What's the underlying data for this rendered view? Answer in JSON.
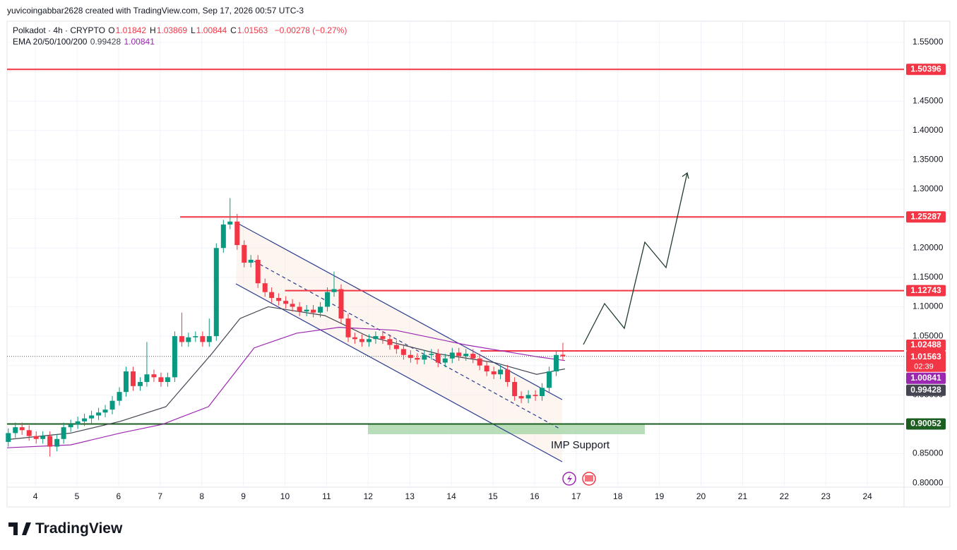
{
  "header": {
    "credit": "yuvicoingabbar2628 created with TradingView.com, Sep 17, 2026 00:57 UTC-3"
  },
  "footer": {
    "logo": "TradingView"
  },
  "chart_data": {
    "type": "candlestick",
    "symbol": "Polkadot · 4h · CRYPTO",
    "ohlc_letters": [
      "O",
      "H",
      "L",
      "C"
    ],
    "change": "−0.00278 (−0.27%)",
    "indicator": "EMA 20/50/100/200",
    "annotation": "IMP Support",
    "countdown": "02:39",
    "up_color": "#089981",
    "down_color": "#f23645",
    "grid": true,
    "xlim": [
      3.32,
      24.88
    ],
    "xticks": [
      4,
      5,
      6,
      7,
      8,
      9,
      10,
      11,
      12,
      13,
      14,
      15,
      16,
      17,
      18,
      19,
      20,
      21,
      22,
      23,
      24
    ],
    "ylim": [
      0.793,
      1.586
    ],
    "yticks": [
      {
        "value": 0.8,
        "label": "0.80000"
      },
      {
        "value": 0.85,
        "label": "0.85000"
      },
      {
        "value": 0.9,
        "label": "0.90000"
      },
      {
        "value": 0.95,
        "label": "0.95000"
      },
      {
        "value": 1.0,
        "label": "1.00000"
      },
      {
        "value": 1.05,
        "label": "1.05000"
      },
      {
        "value": 1.1,
        "label": "1.10000"
      },
      {
        "value": 1.15,
        "label": "1.15000"
      },
      {
        "value": 1.2,
        "label": "1.20000"
      },
      {
        "value": 1.25,
        "label": "1.25000"
      },
      {
        "value": 1.3,
        "label": "1.30000"
      },
      {
        "value": 1.35,
        "label": "1.35000"
      },
      {
        "value": 1.4,
        "label": "1.40000"
      },
      {
        "value": 1.45,
        "label": "1.45000"
      },
      {
        "value": 1.5,
        "label": "1.50000"
      },
      {
        "value": 1.55,
        "label": "1.55000"
      }
    ],
    "x": [
      3.35,
      3.52,
      3.68,
      3.85,
      4.02,
      4.18,
      4.35,
      4.52,
      4.68,
      4.85,
      5.02,
      5.18,
      5.35,
      5.52,
      5.68,
      5.85,
      6.02,
      6.18,
      6.35,
      6.52,
      6.68,
      6.85,
      7.02,
      7.18,
      7.35,
      7.52,
      7.68,
      7.85,
      8.02,
      8.18,
      8.35,
      8.52,
      8.68,
      8.85,
      9.02,
      9.18,
      9.35,
      9.52,
      9.68,
      9.85,
      10.02,
      10.18,
      10.35,
      10.52,
      10.68,
      10.85,
      11.02,
      11.18,
      11.35,
      11.52,
      11.68,
      11.85,
      12.02,
      12.18,
      12.35,
      12.52,
      12.68,
      12.85,
      13.02,
      13.18,
      13.35,
      13.52,
      13.68,
      13.85,
      14.02,
      14.18,
      14.35,
      14.52,
      14.68,
      14.85,
      15.02,
      15.18,
      15.35,
      15.52,
      15.68,
      15.85,
      16.02,
      16.18,
      16.35,
      16.52,
      16.68
    ],
    "candles": [
      [
        0.87,
        0.893,
        0.862,
        0.885
      ],
      [
        0.885,
        0.903,
        0.877,
        0.895
      ],
      [
        0.895,
        0.903,
        0.882,
        0.89
      ],
      [
        0.89,
        0.898,
        0.872,
        0.88
      ],
      [
        0.88,
        0.888,
        0.867,
        0.875
      ],
      [
        0.875,
        0.888,
        0.867,
        0.88
      ],
      [
        0.88,
        0.888,
        0.845,
        0.862
      ],
      [
        0.862,
        0.883,
        0.854,
        0.875
      ],
      [
        0.875,
        0.903,
        0.867,
        0.895
      ],
      [
        0.895,
        0.908,
        0.887,
        0.9
      ],
      [
        0.9,
        0.913,
        0.892,
        0.905
      ],
      [
        0.905,
        0.918,
        0.897,
        0.91
      ],
      [
        0.91,
        0.923,
        0.902,
        0.915
      ],
      [
        0.915,
        0.928,
        0.907,
        0.92
      ],
      [
        0.92,
        0.933,
        0.912,
        0.925
      ],
      [
        0.925,
        0.948,
        0.917,
        0.94
      ],
      [
        0.94,
        0.963,
        0.932,
        0.955
      ],
      [
        0.955,
        0.998,
        0.947,
        0.99
      ],
      [
        0.99,
        0.998,
        0.957,
        0.965
      ],
      [
        0.965,
        0.98,
        0.957,
        0.972
      ],
      [
        0.972,
        1.04,
        0.964,
        0.985
      ],
      [
        0.985,
        0.993,
        0.972,
        0.98
      ],
      [
        0.98,
        0.988,
        0.964,
        0.972
      ],
      [
        0.972,
        0.988,
        0.964,
        0.98
      ],
      [
        0.98,
        1.058,
        0.972,
        1.05
      ],
      [
        1.05,
        1.09,
        1.032,
        1.04
      ],
      [
        1.04,
        1.056,
        1.032,
        1.048
      ],
      [
        1.048,
        1.058,
        1.04,
        1.05
      ],
      [
        1.05,
        1.058,
        1.032,
        1.04
      ],
      [
        1.04,
        1.08,
        1.032,
        1.05
      ],
      [
        1.05,
        1.208,
        1.042,
        1.2
      ],
      [
        1.2,
        1.248,
        1.192,
        1.24
      ],
      [
        1.24,
        1.285,
        1.232,
        1.245
      ],
      [
        1.245,
        1.258,
        1.197,
        1.205
      ],
      [
        1.205,
        1.213,
        1.167,
        1.175
      ],
      [
        1.175,
        1.188,
        1.167,
        1.18
      ],
      [
        1.18,
        1.188,
        1.132,
        1.14
      ],
      [
        1.14,
        1.148,
        1.117,
        1.125
      ],
      [
        1.125,
        1.133,
        1.107,
        1.115
      ],
      [
        1.115,
        1.123,
        1.102,
        1.11
      ],
      [
        1.11,
        1.118,
        1.097,
        1.105
      ],
      [
        1.105,
        1.113,
        1.092,
        1.1
      ],
      [
        1.1,
        1.108,
        1.084,
        1.092
      ],
      [
        1.092,
        1.103,
        1.084,
        1.095
      ],
      [
        1.095,
        1.103,
        1.082,
        1.09
      ],
      [
        1.09,
        1.108,
        1.082,
        1.1
      ],
      [
        1.1,
        1.133,
        1.092,
        1.125
      ],
      [
        1.125,
        1.16,
        1.117,
        1.13
      ],
      [
        1.13,
        1.138,
        1.072,
        1.08
      ],
      [
        1.08,
        1.088,
        1.04,
        1.048
      ],
      [
        1.048,
        1.056,
        1.037,
        1.045
      ],
      [
        1.045,
        1.053,
        1.032,
        1.04
      ],
      [
        1.04,
        1.053,
        1.032,
        1.045
      ],
      [
        1.045,
        1.058,
        1.037,
        1.05
      ],
      [
        1.05,
        1.058,
        1.037,
        1.045
      ],
      [
        1.045,
        1.053,
        1.027,
        1.035
      ],
      [
        1.035,
        1.043,
        1.02,
        1.028
      ],
      [
        1.028,
        1.036,
        1.01,
        1.018
      ],
      [
        1.018,
        1.026,
        1.005,
        1.013
      ],
      [
        1.013,
        1.021,
        1.002,
        1.01
      ],
      [
        1.01,
        1.026,
        1.002,
        1.018
      ],
      [
        1.018,
        1.028,
        1.01,
        1.02
      ],
      [
        1.02,
        1.028,
        0.997,
        1.005
      ],
      [
        1.005,
        1.02,
        0.997,
        1.012
      ],
      [
        1.012,
        1.03,
        1.004,
        1.022
      ],
      [
        1.022,
        1.03,
        1.008,
        1.016
      ],
      [
        1.016,
        1.028,
        1.008,
        1.02
      ],
      [
        1.02,
        1.028,
        1.004,
        1.012
      ],
      [
        1.012,
        1.02,
        0.992,
        1.0
      ],
      [
        1.0,
        1.008,
        0.982,
        0.99
      ],
      [
        0.99,
        0.998,
        0.977,
        0.985
      ],
      [
        0.985,
        1.001,
        0.977,
        0.993
      ],
      [
        0.993,
        1.001,
        0.964,
        0.972
      ],
      [
        0.972,
        0.98,
        0.94,
        0.948
      ],
      [
        0.948,
        0.956,
        0.936,
        0.944
      ],
      [
        0.944,
        0.958,
        0.936,
        0.95
      ],
      [
        0.95,
        0.958,
        0.94,
        0.948
      ],
      [
        0.948,
        0.97,
        0.94,
        0.962
      ],
      [
        0.962,
        0.998,
        0.954,
        0.99
      ],
      [
        0.99,
        1.026,
        0.982,
        1.018
      ],
      [
        1.01842,
        1.03869,
        1.00844,
        1.01563
      ]
    ],
    "series": [
      {
        "name": "EMA 20",
        "color": "#434651",
        "x": [
          3.32,
          4.85,
          6.04,
          7.14,
          8.24,
          8.92,
          9.6,
          10.96,
          11.98,
          13.68,
          15.04,
          16.05,
          16.73
        ],
        "values": [
          0.874,
          0.885,
          0.905,
          0.93,
          1.02,
          1.08,
          1.1,
          1.085,
          1.05,
          1.02,
          1.005,
          0.985,
          0.99428
        ]
      },
      {
        "name": "EMA 50",
        "color": "#9c27b0",
        "x": [
          3.32,
          4.85,
          6.04,
          7.06,
          8.16,
          9.26,
          10.28,
          11.3,
          12.66,
          14.36,
          16.05,
          16.73
        ],
        "values": [
          0.86,
          0.865,
          0.885,
          0.9,
          0.93,
          1.03,
          1.055,
          1.065,
          1.06,
          1.035,
          1.015,
          1.00841
        ]
      }
    ],
    "levels": [
      {
        "value": 1.50396,
        "color": "#f23645"
      },
      {
        "value": 1.25287,
        "color": "#f23645",
        "from": 7.48
      },
      {
        "value": 1.12743,
        "color": "#f23645",
        "from": 10.0
      },
      {
        "value": 1.02488,
        "color": "#f23645",
        "from": 14.7
      },
      {
        "value": 0.90052,
        "color": "#1b5e20"
      }
    ]
  }
}
